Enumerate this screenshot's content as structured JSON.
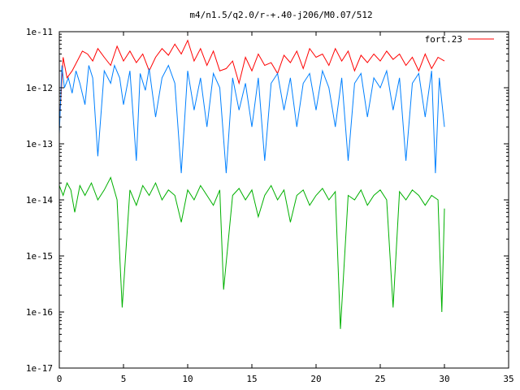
{
  "chart_data": {
    "type": "line",
    "title": "m4/n1.5/q2.0/r-+.40-j206/M0.07/512",
    "xlabel": "",
    "ylabel": "",
    "xlim": [
      0,
      35
    ],
    "ylim": [
      1e-17,
      1e-11
    ],
    "y_scale": "log",
    "x_ticks": [
      0,
      5,
      10,
      15,
      20,
      25,
      30,
      35
    ],
    "x_tick_labels": [
      "0",
      "5",
      "10",
      "15",
      "20",
      "25",
      "30",
      "35"
    ],
    "y_ticks": [
      1e-17,
      1e-16,
      1e-15,
      1e-14,
      1e-13,
      1e-12,
      1e-11
    ],
    "y_tick_labels": [
      "1e-17",
      "1e-16",
      "1e-15",
      "1e-14",
      "1e-13",
      "1e-12",
      "1e-11"
    ],
    "grid": false,
    "legend_position": "top-right",
    "series": [
      {
        "name": "fort.23",
        "color": "#ff0000",
        "x": [
          0.0,
          0.3,
          0.6,
          1.0,
          1.4,
          1.8,
          2.2,
          2.6,
          3.0,
          3.5,
          4.0,
          4.5,
          5.0,
          5.5,
          6.0,
          6.5,
          7.0,
          7.5,
          8.0,
          8.5,
          9.0,
          9.5,
          10.0,
          10.5,
          11.0,
          11.5,
          12.0,
          12.5,
          13.0,
          13.5,
          14.0,
          14.5,
          15.0,
          15.5,
          16.0,
          16.5,
          17.0,
          17.5,
          18.0,
          18.5,
          19.0,
          19.5,
          20.0,
          20.5,
          21.0,
          21.5,
          22.0,
          22.5,
          23.0,
          23.5,
          24.0,
          24.5,
          25.0,
          25.5,
          26.0,
          26.5,
          27.0,
          27.5,
          28.0,
          28.5,
          29.0,
          29.5,
          30.0
        ],
        "y": [
          2e-13,
          3.5e-12,
          1.5e-12,
          2e-12,
          3e-12,
          4.5e-12,
          4e-12,
          3e-12,
          5e-12,
          3.5e-12,
          2.5e-12,
          5.5e-12,
          3e-12,
          4.5e-12,
          2.8e-12,
          4e-12,
          2e-12,
          3.5e-12,
          5e-12,
          3.8e-12,
          6e-12,
          4e-12,
          7e-12,
          3e-12,
          5e-12,
          2.5e-12,
          4.5e-12,
          2e-12,
          2.2e-12,
          3e-12,
          1.2e-12,
          3.5e-12,
          2e-12,
          4e-12,
          2.5e-12,
          2.8e-12,
          1.8e-12,
          3.8e-12,
          2.8e-12,
          4.5e-12,
          2.2e-12,
          5e-12,
          3.5e-12,
          4e-12,
          2.5e-12,
          5e-12,
          3e-12,
          4.5e-12,
          2e-12,
          3.8e-12,
          2.8e-12,
          4e-12,
          3e-12,
          4.5e-12,
          3.2e-12,
          4e-12,
          2.5e-12,
          3.5e-12,
          2e-12,
          4e-12,
          2.2e-12,
          3.5e-12,
          3e-12
        ]
      },
      {
        "name": "",
        "color": "#0080ff",
        "x": [
          0.0,
          0.2,
          0.4,
          0.7,
          1.0,
          1.3,
          1.6,
          2.0,
          2.3,
          2.6,
          3.0,
          3.5,
          4.0,
          4.3,
          4.7,
          5.0,
          5.5,
          6.0,
          6.3,
          6.7,
          7.0,
          7.5,
          8.0,
          8.5,
          9.0,
          9.5,
          10.0,
          10.5,
          11.0,
          11.5,
          12.0,
          12.5,
          13.0,
          13.5,
          14.0,
          14.5,
          15.0,
          15.5,
          16.0,
          16.5,
          17.0,
          17.5,
          18.0,
          18.5,
          19.0,
          19.5,
          20.0,
          20.5,
          21.0,
          21.5,
          22.0,
          22.5,
          23.0,
          23.5,
          24.0,
          24.5,
          25.0,
          25.5,
          26.0,
          26.5,
          27.0,
          27.5,
          28.0,
          28.5,
          29.0,
          29.3,
          29.6,
          30.0
        ],
        "y": [
          1.5e-13,
          2.5e-12,
          1e-12,
          1.5e-12,
          8e-13,
          2e-12,
          1.2e-12,
          5e-13,
          2.5e-12,
          1.5e-12,
          6e-14,
          2e-12,
          1.2e-12,
          2.5e-12,
          1.5e-12,
          5e-13,
          2e-12,
          5e-14,
          1.8e-12,
          9e-13,
          2.2e-12,
          3e-13,
          1.5e-12,
          2.5e-12,
          1.2e-12,
          3e-14,
          2e-12,
          4e-13,
          1.5e-12,
          2e-13,
          1.8e-12,
          1e-12,
          3e-14,
          1.5e-12,
          4e-13,
          1.2e-12,
          2e-13,
          1.5e-12,
          5e-14,
          1.2e-12,
          1.8e-12,
          4e-13,
          1.5e-12,
          2e-13,
          1.2e-12,
          1.8e-12,
          4e-13,
          2e-12,
          1e-12,
          2e-13,
          1.5e-12,
          5e-14,
          1.2e-12,
          1.8e-12,
          3e-13,
          1.5e-12,
          1e-12,
          2e-12,
          4e-13,
          1.5e-12,
          5e-14,
          1.2e-12,
          1.8e-12,
          3e-13,
          2e-12,
          3e-14,
          1.5e-12,
          2e-13
        ]
      },
      {
        "name": "",
        "color": "#00b000",
        "x": [
          0.0,
          0.3,
          0.6,
          0.9,
          1.2,
          1.6,
          2.0,
          2.5,
          3.0,
          3.5,
          4.0,
          4.5,
          4.9,
          5.5,
          6.0,
          6.5,
          7.0,
          7.5,
          8.0,
          8.5,
          9.0,
          9.5,
          10.0,
          10.5,
          11.0,
          11.5,
          12.0,
          12.5,
          12.8,
          13.5,
          14.0,
          14.5,
          15.0,
          15.5,
          16.0,
          16.5,
          17.0,
          17.5,
          18.0,
          18.5,
          19.0,
          19.5,
          20.0,
          20.5,
          21.0,
          21.5,
          21.9,
          22.5,
          23.0,
          23.5,
          24.0,
          24.5,
          25.0,
          25.5,
          26.0,
          26.5,
          27.0,
          27.5,
          28.0,
          28.5,
          29.0,
          29.5,
          29.8,
          30.0
        ],
        "y": [
          1.8e-14,
          1.2e-14,
          2e-14,
          1.5e-14,
          6e-15,
          1.8e-14,
          1.2e-14,
          2e-14,
          1e-14,
          1.5e-14,
          2.5e-14,
          1e-14,
          1.2e-16,
          1.5e-14,
          8e-15,
          1.8e-14,
          1.2e-14,
          2e-14,
          1e-14,
          1.5e-14,
          1.2e-14,
          4e-15,
          1.5e-14,
          1e-14,
          1.8e-14,
          1.2e-14,
          8e-15,
          1.5e-14,
          2.5e-16,
          1.2e-14,
          1.6e-14,
          1e-14,
          1.5e-14,
          5e-15,
          1.2e-14,
          1.8e-14,
          1e-14,
          1.5e-14,
          4e-15,
          1.2e-14,
          1.5e-14,
          8e-15,
          1.2e-14,
          1.6e-14,
          1e-14,
          1.4e-14,
          5e-17,
          1.2e-14,
          1e-14,
          1.5e-14,
          8e-15,
          1.2e-14,
          1.5e-14,
          1e-14,
          1.2e-16,
          1.4e-14,
          1e-14,
          1.5e-14,
          1.2e-14,
          8e-15,
          1.2e-14,
          1e-14,
          1e-16,
          7e-15
        ]
      }
    ]
  }
}
